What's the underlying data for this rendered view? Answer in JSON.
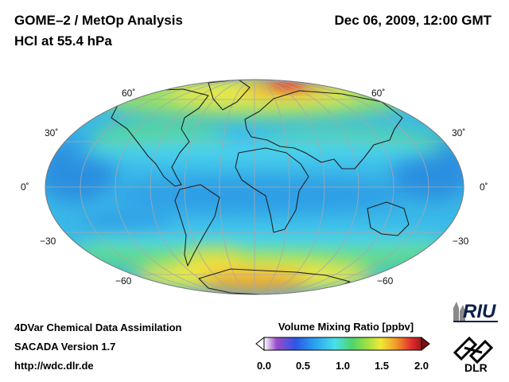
{
  "header": {
    "title_line1": "GOME–2 / MetOp Analysis",
    "title_line2": "HCl at 55.4 hPa",
    "date": "Dec 06, 2009, 12:00 GMT"
  },
  "map": {
    "projection": "Mollweide",
    "grid_latitudes": [
      60,
      30,
      0,
      -30,
      -60
    ],
    "lat_labels": {
      "n60": "60˚",
      "n30": "30˚",
      "eq": "0˚",
      "s30": "−30",
      "s60": "−60"
    },
    "field_colors": {
      "background": "#3ab8e8",
      "deep_blue": "#2a8fe0",
      "cyan": "#4cd2ee",
      "green": "#64dc80",
      "yellow": "#f0ea40",
      "orange": "#f0a030",
      "red": "#e43838"
    }
  },
  "footer": {
    "line1": "4DVar Chemical Data Assimilation",
    "line2": "SACADA Version 1.7",
    "line3": "http://wdc.dlr.de"
  },
  "colorbar": {
    "title": "Volume Mixing Ratio [ppbv]",
    "ticks": [
      "0.0",
      "0.5",
      "1.0",
      "1.5",
      "2.0"
    ],
    "range": [
      0.0,
      2.0
    ]
  },
  "logos": {
    "riu": "RIU",
    "dlr": "DLR"
  }
}
